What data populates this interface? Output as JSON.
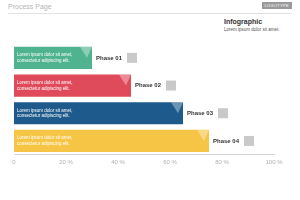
{
  "header": {
    "title": "Process Page",
    "logo": "LOGOTYPE"
  },
  "infographic": {
    "title": "Infographic",
    "subtitle": "Lorem ipsum dolor sit amet."
  },
  "chart_data": {
    "type": "bar",
    "orientation": "horizontal",
    "categories": [
      "Phase 01",
      "Phase 02",
      "Phase 03",
      "Phase 04"
    ],
    "values": [
      30,
      45,
      65,
      75
    ],
    "colors": [
      "#4fb38f",
      "#e04b5c",
      "#1e5b8c",
      "#f6c545"
    ],
    "bar_texts": [
      [
        "Lorem ipsum dolor sit amet,",
        "consectetur adipiscing elit."
      ],
      [
        "Lorem ipsum dolor sit amet,",
        "consectetur adipiscing elit."
      ],
      [
        "Lorem ipsum dolor sit amet,",
        "consectetur adipiscing elit."
      ],
      [
        "Lorem ipsum dolor sit amet,",
        "consectetur adipiscing elit."
      ]
    ],
    "xlim": [
      0,
      100
    ],
    "xticks": [
      0,
      {
        "value": 20,
        "label": "20 %"
      },
      {
        "value": 40,
        "label": "40 %"
      },
      {
        "value": 60,
        "label": "60 %"
      },
      {
        "value": 80,
        "label": "80 %"
      },
      {
        "value": 100,
        "label": "100 %"
      }
    ],
    "grid": false,
    "tick_labels": "x"
  }
}
